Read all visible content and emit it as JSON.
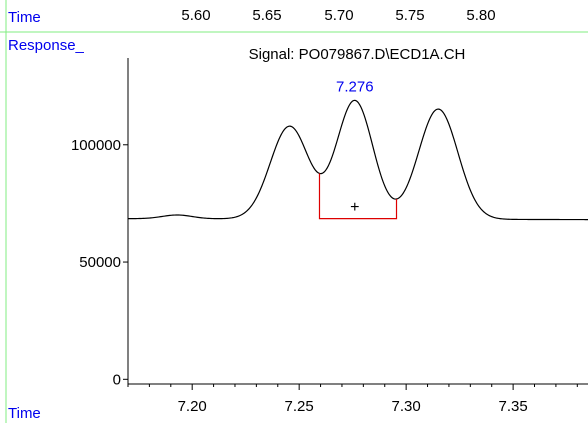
{
  "top_strip": {
    "label": "Time",
    "ticks": [
      "5.60",
      "5.65",
      "5.70",
      "5.75",
      "5.80"
    ]
  },
  "chart_data": {
    "type": "line",
    "title": "Signal: PO079867.D\\ECD1A.CH",
    "ylabel": "Response_",
    "xlabel": "Time",
    "xlim": [
      7.17,
      7.385
    ],
    "ylim": [
      -2000,
      137000
    ],
    "x_ticks": [
      7.2,
      7.25,
      7.3,
      7.35
    ],
    "x_tick_labels": [
      "7.20",
      "7.25",
      "7.30",
      "7.35"
    ],
    "x_minor_step": 0.01,
    "y_ticks": [
      0,
      50000,
      100000
    ],
    "y_tick_labels": [
      "0",
      "50000",
      "100000"
    ],
    "series": [
      {
        "color": "#000000",
        "baseline": 68500,
        "baseline_drift": -400,
        "peaks": [
          {
            "rt": 7.193,
            "height": 1600,
            "width": 0.007
          },
          {
            "rt": 7.2455,
            "height": 39500,
            "width": 0.009
          },
          {
            "rt": 7.276,
            "height": 50500,
            "width": 0.0085
          },
          {
            "rt": 7.315,
            "height": 47000,
            "width": 0.0092
          }
        ]
      }
    ],
    "peak_label": {
      "text": "7.276",
      "rt": 7.276,
      "color": "#0000ee"
    },
    "integration": {
      "start": 7.2595,
      "end": 7.2955,
      "baseline_value": 68500,
      "color": "#dd0000"
    },
    "marker": {
      "symbol": "+",
      "x": 7.276,
      "y": 73500
    }
  },
  "colors": {
    "frame": "#80ee80",
    "label_blue": "#0000ee",
    "trace": "#000000",
    "axis": "#000000"
  }
}
